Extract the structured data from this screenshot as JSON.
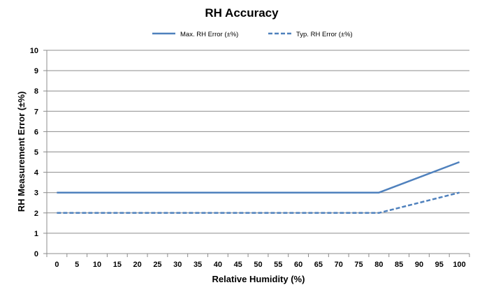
{
  "chart_data": {
    "type": "line",
    "title": "RH Accuracy",
    "xlabel": "Relative Humidity (%)",
    "ylabel": "RH Measurement Error (±%)",
    "categories": [
      "0",
      "5",
      "10",
      "15",
      "20",
      "25",
      "30",
      "35",
      "40",
      "45",
      "50",
      "55",
      "60",
      "65",
      "70",
      "75",
      "80",
      "85",
      "90",
      "95",
      "100"
    ],
    "ylim": [
      0,
      10
    ],
    "yticks": [
      0,
      1,
      2,
      3,
      4,
      5,
      6,
      7,
      8,
      9,
      10
    ],
    "grid": "horizontal",
    "legend_position": "top",
    "series": [
      {
        "name": "Max. RH Error (±%)",
        "style": "solid",
        "color": "#4F81BD",
        "x": [
          0,
          80,
          100
        ],
        "values": [
          3,
          3,
          4.5
        ]
      },
      {
        "name": "Typ. RH Error (±%)",
        "style": "dashed",
        "color": "#4F81BD",
        "x": [
          0,
          80,
          100
        ],
        "values": [
          2,
          2,
          3
        ]
      }
    ]
  }
}
